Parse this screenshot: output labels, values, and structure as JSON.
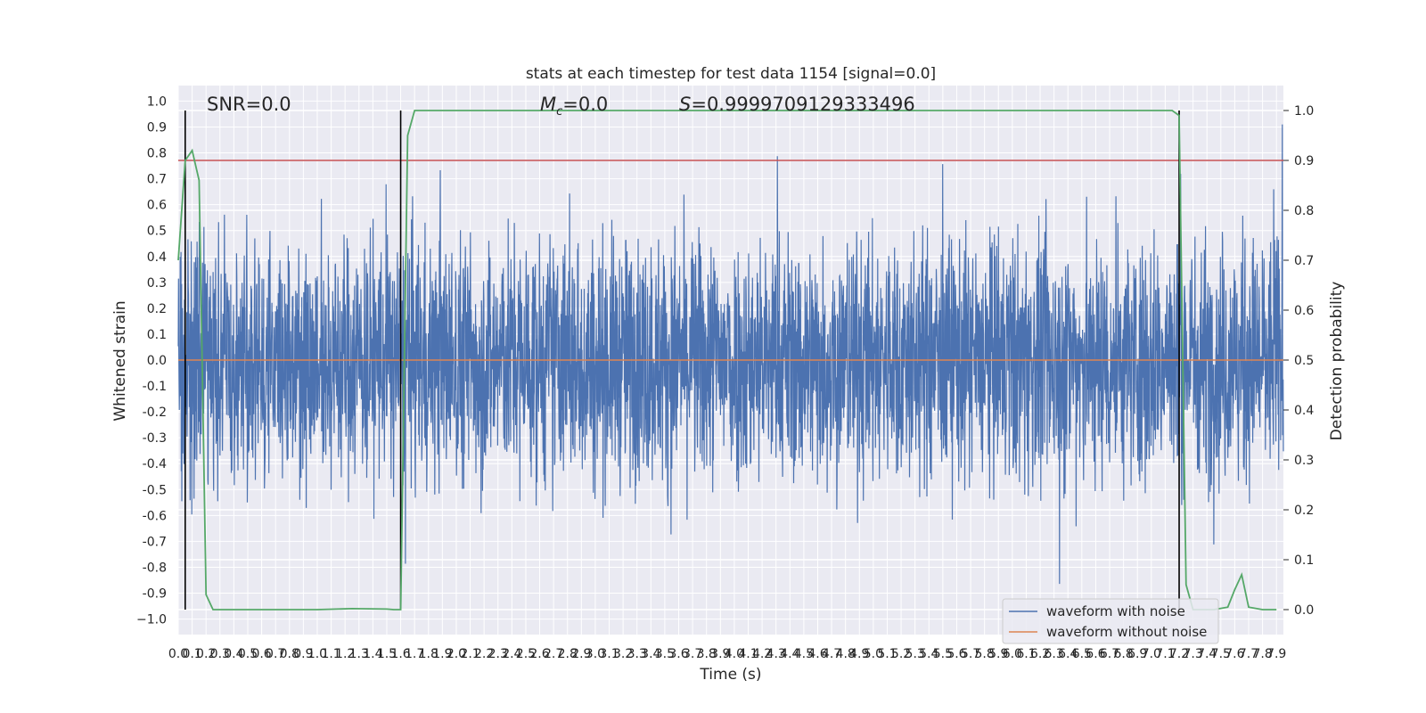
{
  "chart_data": {
    "type": "line",
    "title": "stats at each timestep for test data 1154 [signal=0.0]",
    "xlabel": "Time (s)",
    "ylabel_left": "Whitened strain",
    "ylabel_right": "Detection probability",
    "xlim": [
      0.0,
      7.95
    ],
    "ylim_left": [
      -1.06,
      1.06
    ],
    "ylim_right": [
      -0.05,
      1.05
    ],
    "x_ticks": [
      "0.0",
      "0.1",
      "0.2",
      "0.3",
      "0.4",
      "0.5",
      "0.6",
      "0.7",
      "0.8",
      "0.9",
      "1.0",
      "1.1",
      "1.2",
      "1.3",
      "1.4",
      "1.5",
      "1.6",
      "1.7",
      "1.8",
      "1.9",
      "2.0",
      "2.1",
      "2.2",
      "2.3",
      "2.4",
      "2.5",
      "2.6",
      "2.7",
      "2.8",
      "2.9",
      "3.0",
      "3.1",
      "3.2",
      "3.3",
      "3.4",
      "3.5",
      "3.6",
      "3.7",
      "3.8",
      "3.9",
      "4.0",
      "4.1",
      "4.2",
      "4.3",
      "4.4",
      "4.5",
      "4.6",
      "4.7",
      "4.8",
      "4.9",
      "5.0",
      "5.1",
      "5.2",
      "5.3",
      "5.4",
      "5.5",
      "5.6",
      "5.7",
      "5.8",
      "5.9",
      "6.0",
      "6.1",
      "6.2",
      "6.3",
      "6.4",
      "6.5",
      "6.6",
      "6.7",
      "6.8",
      "6.9",
      "7.0",
      "7.1",
      "7.2",
      "7.3",
      "7.4",
      "7.5",
      "7.6",
      "7.7",
      "7.8",
      "7.9"
    ],
    "y_ticks_left": [
      "1.0",
      "0.9",
      "0.8",
      "0.7",
      "0.6",
      "0.5",
      "0.4",
      "0.3",
      "0.2",
      "0.1",
      "0.0",
      "-0.1",
      "-0.2",
      "-0.3",
      "-0.4",
      "-0.5",
      "-0.6",
      "-0.7",
      "-0.8",
      "-0.9",
      "−1.0"
    ],
    "y_ticks_right": [
      "1.0",
      "0.9",
      "0.8",
      "0.7",
      "0.6",
      "0.5",
      "0.4",
      "0.3",
      "0.2",
      "0.1",
      "0.0"
    ],
    "annotations": {
      "snr": "SNR=0.0",
      "mc_symbol": "M",
      "mc_sub": "c",
      "mc_value": "=0.0",
      "s_symbol": "S",
      "s_value": "=0.9999709129333496"
    },
    "threshold": {
      "axis": "right",
      "y": 0.9,
      "color": "#c44e52"
    },
    "vlines": [
      0.05,
      1.6,
      7.2
    ],
    "grid": true,
    "legend_position": "lower right",
    "legend": [
      "waveform with noise",
      "waveform without noise"
    ],
    "series": [
      {
        "name": "waveform with noise",
        "axis": "left",
        "color": "#4c72b0",
        "noise_envelope": {
          "typical_abs": 0.45,
          "max": 1.0,
          "min": -0.91
        }
      },
      {
        "name": "waveform without noise",
        "axis": "left",
        "color": "#dd8452",
        "x": [
          0.0,
          7.95
        ],
        "y": [
          0.0,
          0.0
        ]
      },
      {
        "axis": "right",
        "color": "#55a868",
        "x": [
          0.0,
          0.05,
          0.1,
          0.15,
          0.2,
          0.25,
          0.5,
          0.75,
          1.0,
          1.25,
          1.5,
          1.55,
          1.6,
          1.65,
          1.7,
          1.75,
          2.0,
          4.0,
          6.0,
          7.15,
          7.2,
          7.25,
          7.3,
          7.35,
          7.45,
          7.55,
          7.6,
          7.65,
          7.7,
          7.8,
          7.9
        ],
        "y": [
          0.7,
          0.9,
          0.92,
          0.86,
          0.03,
          0.0,
          0.0,
          0.0,
          0.0,
          0.002,
          0.001,
          0.0,
          0.0,
          0.95,
          1.0,
          1.0,
          1.0,
          1.0,
          1.0,
          1.0,
          0.99,
          0.05,
          0.0,
          0.0,
          0.0,
          0.005,
          0.04,
          0.07,
          0.005,
          0.0,
          0.0
        ]
      }
    ]
  }
}
